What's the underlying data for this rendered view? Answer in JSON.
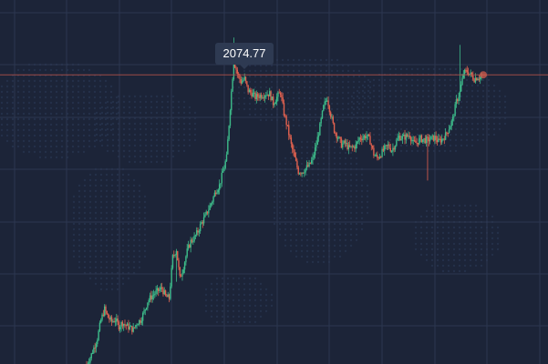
{
  "colors": {
    "background": "#1c2438",
    "grid": "#2c3650",
    "up": "#3dbb8a",
    "down": "#e0614f",
    "price_line": "#b4524a",
    "label_bg": "#2e3a52",
    "label_text": "#ffffff",
    "map_dots": "#243049"
  },
  "peak_label": "2074.77",
  "chart_data": {
    "type": "candlestick",
    "title": "",
    "xlabel": "",
    "ylabel": "",
    "grid": true,
    "ylim": [
      1420,
      2150
    ],
    "peak_value": 2074.77,
    "current_price_line": 2000,
    "x": [],
    "anchors": [
      [
        0,
        1420
      ],
      [
        3,
        1433
      ],
      [
        6,
        1452
      ],
      [
        9,
        1472
      ],
      [
        12,
        1508
      ],
      [
        15,
        1530
      ],
      [
        18,
        1513
      ],
      [
        21,
        1505
      ],
      [
        24,
        1509
      ],
      [
        27,
        1496
      ],
      [
        30,
        1503
      ],
      [
        33,
        1497
      ],
      [
        36,
        1493
      ],
      [
        39,
        1489
      ],
      [
        42,
        1503
      ],
      [
        45,
        1508
      ],
      [
        48,
        1524
      ],
      [
        51,
        1546
      ],
      [
        54,
        1555
      ],
      [
        57,
        1562
      ],
      [
        60,
        1567
      ],
      [
        63,
        1572
      ],
      [
        66,
        1555
      ],
      [
        69,
        1552
      ],
      [
        72,
        1634
      ],
      [
        75,
        1650
      ],
      [
        78,
        1591
      ],
      [
        81,
        1616
      ],
      [
        84,
        1646
      ],
      [
        87,
        1666
      ],
      [
        90,
        1673
      ],
      [
        93,
        1686
      ],
      [
        96,
        1703
      ],
      [
        99,
        1715
      ],
      [
        102,
        1731
      ],
      [
        105,
        1748
      ],
      [
        108,
        1768
      ],
      [
        111,
        1778
      ],
      [
        114,
        1806
      ],
      [
        117,
        1834
      ],
      [
        120,
        1935
      ],
      [
        123,
        2028
      ],
      [
        126,
        2003
      ],
      [
        129,
        1986
      ],
      [
        132,
        1992
      ],
      [
        135,
        1968
      ],
      [
        138,
        1963
      ],
      [
        141,
        1955
      ],
      [
        144,
        1958
      ],
      [
        147,
        1960
      ],
      [
        150,
        1962
      ],
      [
        153,
        1962
      ],
      [
        156,
        1943
      ],
      [
        159,
        1955
      ],
      [
        162,
        1965
      ],
      [
        165,
        1923
      ],
      [
        168,
        1893
      ],
      [
        171,
        1859
      ],
      [
        174,
        1832
      ],
      [
        177,
        1806
      ],
      [
        180,
        1806
      ],
      [
        183,
        1812
      ],
      [
        186,
        1818
      ],
      [
        189,
        1831
      ],
      [
        192,
        1861
      ],
      [
        195,
        1896
      ],
      [
        198,
        1935
      ],
      [
        201,
        1954
      ],
      [
        204,
        1921
      ],
      [
        207,
        1889
      ],
      [
        210,
        1875
      ],
      [
        213,
        1860
      ],
      [
        216,
        1863
      ],
      [
        219,
        1853
      ],
      [
        222,
        1854
      ],
      [
        225,
        1858
      ],
      [
        228,
        1873
      ],
      [
        231,
        1875
      ],
      [
        234,
        1878
      ],
      [
        237,
        1867
      ],
      [
        240,
        1841
      ],
      [
        243,
        1833
      ],
      [
        246,
        1842
      ],
      [
        249,
        1851
      ],
      [
        252,
        1858
      ],
      [
        255,
        1849
      ],
      [
        258,
        1861
      ],
      [
        261,
        1876
      ],
      [
        264,
        1874
      ],
      [
        267,
        1876
      ],
      [
        270,
        1880
      ],
      [
        273,
        1863
      ],
      [
        276,
        1864
      ],
      [
        279,
        1872
      ],
      [
        282,
        1870
      ],
      [
        285,
        1869
      ],
      [
        288,
        1872
      ],
      [
        291,
        1874
      ],
      [
        294,
        1866
      ],
      [
        297,
        1871
      ],
      [
        300,
        1879
      ],
      [
        303,
        1894
      ],
      [
        306,
        1911
      ],
      [
        309,
        1946
      ],
      [
        312,
        1965
      ],
      [
        315,
        2003
      ],
      [
        318,
        2007
      ],
      [
        321,
        2000
      ],
      [
        324,
        1992
      ],
      [
        327,
        1996
      ],
      [
        330,
        1995
      ]
    ]
  }
}
